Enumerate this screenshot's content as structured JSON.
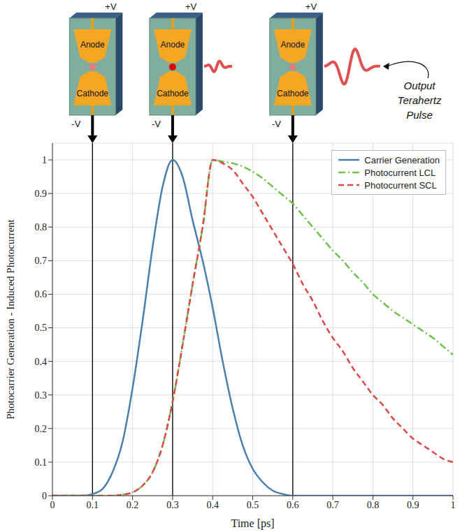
{
  "chart_data": {
    "type": "line",
    "x_label": "Time [ps]",
    "y_label": "Photocarrier Generation - Induced Photocurrent",
    "x": [
      0,
      0.025,
      0.05,
      0.075,
      0.1,
      0.125,
      0.15,
      0.175,
      0.2,
      0.225,
      0.25,
      0.275,
      0.3,
      0.325,
      0.35,
      0.375,
      0.4,
      0.425,
      0.45,
      0.475,
      0.5,
      0.525,
      0.55,
      0.575,
      0.6,
      0.625,
      0.65,
      0.675,
      0.7,
      0.725,
      0.75,
      0.775,
      0.8,
      0.825,
      0.85,
      0.875,
      0.9,
      0.925,
      0.95,
      0.975,
      1
    ],
    "series": [
      {
        "name": "Carrier Generation",
        "color": "#4a7fb0",
        "line_style": "solid",
        "values": [
          0,
          0,
          0,
          0,
          0.005,
          0.02,
          0.07,
          0.16,
          0.32,
          0.52,
          0.74,
          0.92,
          1,
          0.95,
          0.82,
          0.7,
          0.56,
          0.4,
          0.26,
          0.15,
          0.08,
          0.04,
          0.015,
          0.005,
          0,
          0,
          0,
          0,
          0,
          0,
          0,
          0,
          0,
          0,
          0,
          0,
          0,
          0,
          0,
          0,
          0
        ]
      },
      {
        "name": "Photocurrent LCL",
        "color": "#6fc24a",
        "line_style": "dashdot",
        "values": [
          0,
          0,
          0,
          0,
          0,
          0,
          0,
          0.003,
          0.01,
          0.03,
          0.07,
          0.15,
          0.28,
          0.45,
          0.63,
          0.8,
          1,
          0.995,
          0.99,
          0.98,
          0.965,
          0.945,
          0.92,
          0.895,
          0.87,
          0.835,
          0.8,
          0.765,
          0.73,
          0.7,
          0.665,
          0.635,
          0.6,
          0.575,
          0.55,
          0.53,
          0.51,
          0.49,
          0.47,
          0.445,
          0.42
        ]
      },
      {
        "name": "Photocurrent SCL",
        "color": "#e04848",
        "line_style": "dashed",
        "values": [
          0,
          0,
          0,
          0,
          0,
          0,
          0,
          0.003,
          0.01,
          0.03,
          0.07,
          0.15,
          0.28,
          0.45,
          0.63,
          0.8,
          1,
          0.99,
          0.97,
          0.93,
          0.89,
          0.84,
          0.79,
          0.74,
          0.69,
          0.63,
          0.58,
          0.52,
          0.47,
          0.43,
          0.38,
          0.34,
          0.3,
          0.27,
          0.23,
          0.2,
          0.17,
          0.15,
          0.13,
          0.11,
          0.1
        ]
      }
    ],
    "markers": [
      0.1,
      0.3,
      0.6
    ],
    "xlim": [
      0,
      1
    ],
    "xticks": [
      0,
      0.1,
      0.2,
      0.3,
      0.4,
      0.5,
      0.6,
      0.7,
      0.8,
      0.9,
      1
    ],
    "ylim": [
      0,
      1.05
    ],
    "yticks": [
      0,
      0.1,
      0.2,
      0.3,
      0.4,
      0.5,
      0.6,
      0.7,
      0.8,
      0.9,
      1
    ],
    "grid": true,
    "legend": "upper right"
  },
  "diagram": {
    "top_terminal": "+V",
    "bottom_terminal": "-V",
    "anode": "Anode",
    "cathode": "Cathode",
    "annotation": "Output Terahertz Pulse"
  }
}
